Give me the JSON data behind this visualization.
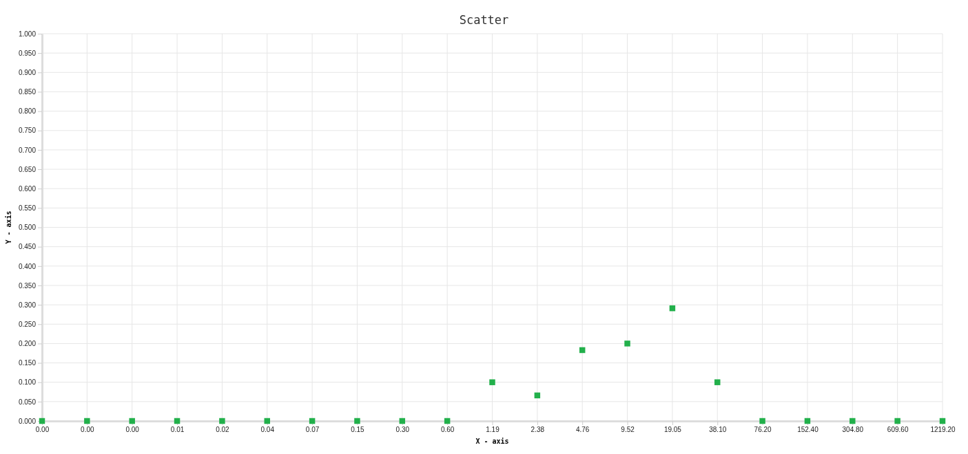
{
  "chart_data": {
    "type": "scatter",
    "title": "Scatter",
    "xlabel": "X - axis",
    "ylabel": "Y - axis",
    "categories": [
      "0.00",
      "0.00",
      "0.00",
      "0.01",
      "0.02",
      "0.04",
      "0.07",
      "0.15",
      "0.30",
      "0.60",
      "1.19",
      "2.38",
      "4.76",
      "9.52",
      "19.05",
      "38.10",
      "76.20",
      "152.40",
      "304.80",
      "609.60",
      "1219.20"
    ],
    "series": [
      {
        "color": "#22b04b",
        "values": [
          0,
          0,
          0,
          0,
          0,
          0,
          0,
          0,
          0,
          0,
          0.1,
          0.066,
          0.183,
          0.2,
          0.291,
          0.1,
          0,
          0,
          0,
          0,
          0
        ]
      }
    ],
    "ylim": [
      0,
      1
    ],
    "yticks": [
      {
        "value": 0,
        "label": "0.000"
      },
      {
        "value": 0.05,
        "label": "0.050"
      },
      {
        "value": 0.1,
        "label": "0.100"
      },
      {
        "value": 0.15,
        "label": "0.150"
      },
      {
        "value": 0.2,
        "label": "0.200"
      },
      {
        "value": 0.25,
        "label": "0.250"
      },
      {
        "value": 0.3,
        "label": "0.300"
      },
      {
        "value": 0.35,
        "label": "0.350"
      },
      {
        "value": 0.4,
        "label": "0.400"
      },
      {
        "value": 0.45,
        "label": "0.450"
      },
      {
        "value": 0.5,
        "label": "0.500"
      },
      {
        "value": 0.55,
        "label": "0.550"
      },
      {
        "value": 0.6,
        "label": "0.600"
      },
      {
        "value": 0.65,
        "label": "0.650"
      },
      {
        "value": 0.7,
        "label": "0.700"
      },
      {
        "value": 0.75,
        "label": "0.750"
      },
      {
        "value": 0.8,
        "label": "0.800"
      },
      {
        "value": 0.85,
        "label": "0.850"
      },
      {
        "value": 0.9,
        "label": "0.900"
      },
      {
        "value": 0.95,
        "label": "0.950"
      },
      {
        "value": 1,
        "label": "1.000"
      }
    ],
    "grid": true,
    "marker": "square"
  }
}
